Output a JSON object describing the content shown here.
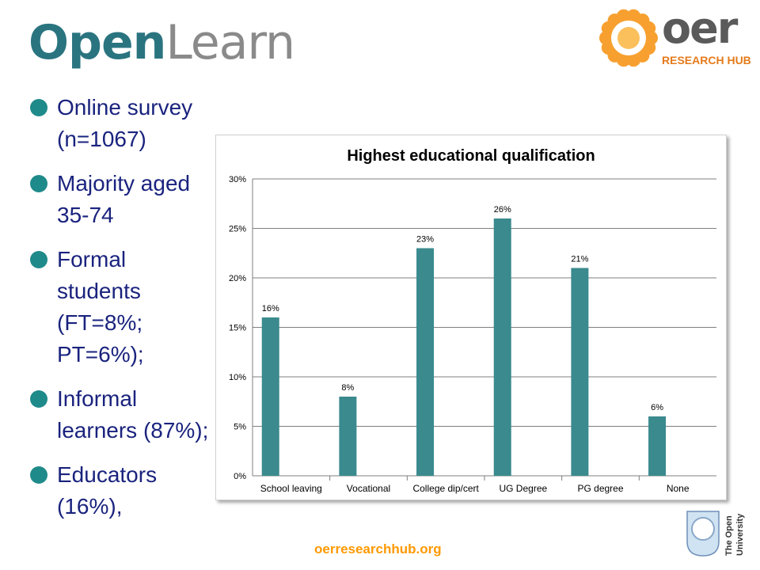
{
  "header": {
    "openlearn_logo": {
      "part1": "Open",
      "part2": "Learn"
    },
    "oer_logo": {
      "main": "oer",
      "sub": "RESEARCH HUB",
      "icon": "orange-sun-icon"
    }
  },
  "bullets": [
    "Online survey (n=1067)",
    "Majority aged 35-74",
    "Formal students (FT=8%; PT=6%);",
    "Informal learners (87%);",
    "Educators (16%),"
  ],
  "colors": {
    "bar": "#3a8a8e",
    "bullet": "#1f8a8a",
    "text": "#1a237e",
    "accent": "#ff9900"
  },
  "chart_data": {
    "type": "bar",
    "title": "Highest educational qualification",
    "categories": [
      "School leaving",
      "Vocational",
      "College dip/cert",
      "UG Degree",
      "PG degree",
      "None"
    ],
    "values": [
      16,
      8,
      23,
      26,
      21,
      6
    ],
    "data_labels": [
      "16%",
      "8%",
      "23%",
      "26%",
      "21%",
      "6%"
    ],
    "ylim": [
      0,
      30
    ],
    "yticks": [
      0,
      5,
      10,
      15,
      20,
      25,
      30
    ],
    "ytick_labels": [
      "0%",
      "5%",
      "10%",
      "15%",
      "20%",
      "25%",
      "30%"
    ],
    "grid": true,
    "xlabel": "",
    "ylabel": ""
  },
  "footer": {
    "url": "oerresearchhub.org",
    "university_logo": {
      "line1": "The Open",
      "line2": "University"
    }
  }
}
